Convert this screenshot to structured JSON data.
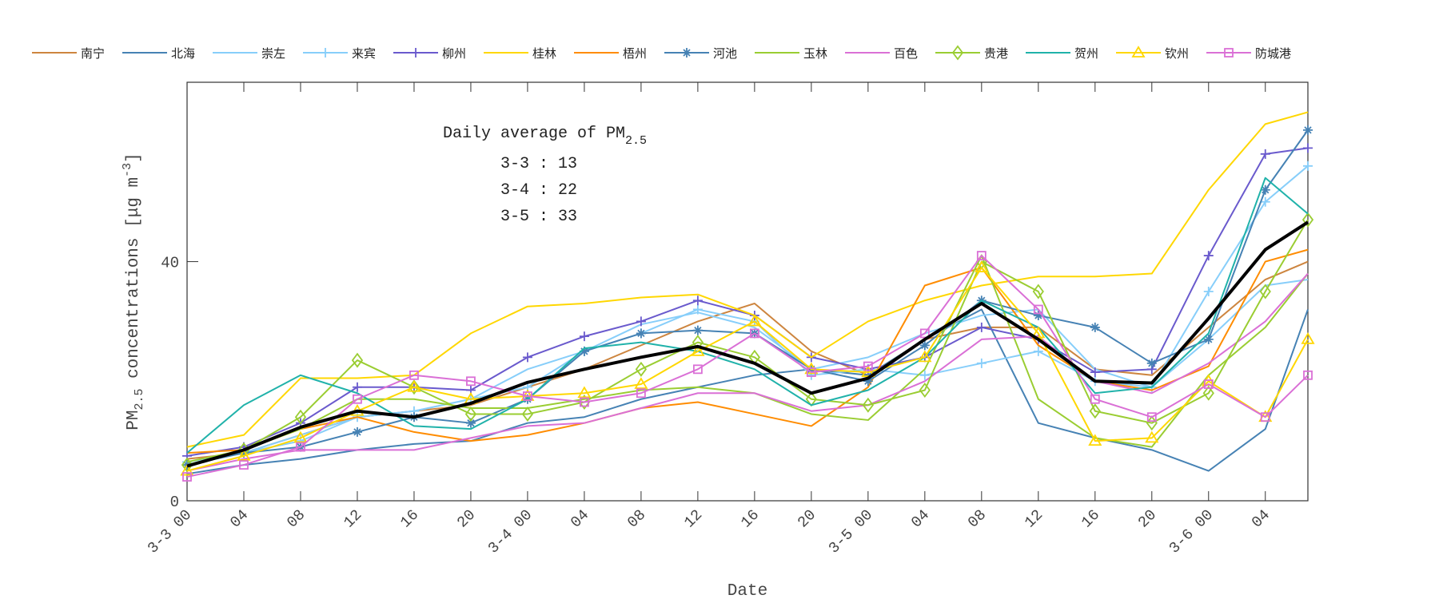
{
  "chart_data": {
    "type": "line",
    "xlabel": "Date",
    "ylabel_main": "PM",
    "ylabel_sub": "2.5",
    "ylabel_rest": " concentrations [",
    "ylabel_unit": "μg m",
    "ylabel_exp": "-3",
    "ylabel_end": "]",
    "ylim": [
      0,
      70
    ],
    "yticks": [
      0,
      40
    ],
    "x_hours_range": [
      0,
      79
    ],
    "x": [
      0,
      4,
      8,
      12,
      16,
      20,
      24,
      28,
      32,
      36,
      40,
      44,
      48,
      52,
      56,
      60,
      64,
      68,
      72,
      76,
      79
    ],
    "xtick_labels": [
      "3-3 00",
      "04",
      "08",
      "12",
      "16",
      "20",
      "3-4 00",
      "04",
      "08",
      "12",
      "16",
      "20",
      "3-5 00",
      "04",
      "08",
      "12",
      "16",
      "20",
      "3-6 00",
      "04"
    ],
    "legend_position": "top",
    "annotation": {
      "title": "Daily average of PM",
      "title_sub": "2.5",
      "lines": [
        "3-3 : 13",
        "3-4 : 22",
        "3-5 : 33"
      ]
    },
    "series": [
      {
        "name": "南宁",
        "color": "#cd853f",
        "marker": "none",
        "values": [
          7,
          8,
          11,
          14,
          15,
          16,
          19,
          22,
          26,
          30,
          33,
          25,
          21,
          27,
          29,
          29,
          22,
          21,
          29,
          37,
          40
        ]
      },
      {
        "name": "北海",
        "color": "#4682b4",
        "marker": "none",
        "values": [
          4.5,
          6,
          7,
          8.5,
          9.5,
          10,
          13,
          14,
          17,
          19,
          21,
          22,
          21,
          27,
          32,
          13,
          10.5,
          8.5,
          5,
          12,
          32
        ]
      },
      {
        "name": "崇左",
        "color": "#87cefa",
        "marker": "none",
        "values": [
          6,
          8,
          11,
          14,
          15,
          17,
          22,
          25,
          29.5,
          31.5,
          29,
          22,
          24,
          28,
          31,
          32,
          22,
          19,
          27,
          36,
          37
        ]
      },
      {
        "name": "来宾",
        "color": "#87cefa",
        "marker": "plus",
        "values": [
          6.5,
          8,
          10,
          14,
          15,
          17,
          19,
          25,
          28,
          32,
          30,
          21,
          22,
          21,
          23,
          25,
          20,
          19,
          35,
          50,
          56
        ]
      },
      {
        "name": "柳州",
        "color": "#6a5acd",
        "marker": "plus",
        "values": [
          7.5,
          9,
          13,
          19,
          19,
          18.5,
          24,
          27.5,
          30,
          33.5,
          31,
          24,
          22,
          24,
          29,
          27,
          21.5,
          22,
          41,
          58,
          59
        ]
      },
      {
        "name": "桂林",
        "color": "#ffd700",
        "marker": "none",
        "values": [
          9,
          11,
          20.5,
          20.5,
          21,
          28,
          32.5,
          33,
          34,
          34.5,
          31,
          24,
          30,
          33.5,
          36,
          37.5,
          37.5,
          38,
          52,
          63,
          65
        ]
      },
      {
        "name": "梧州",
        "color": "#ff8c00",
        "marker": "none",
        "values": [
          8,
          8.5,
          12,
          14,
          11.5,
          10,
          11,
          13,
          15.5,
          16.5,
          14.5,
          12.5,
          19,
          36,
          39,
          26,
          20,
          18.5,
          22.5,
          40,
          42
        ]
      },
      {
        "name": "河池",
        "color": "#4682b4",
        "marker": "star",
        "values": [
          6,
          8,
          9,
          11.5,
          14,
          13,
          17,
          25,
          28,
          28.5,
          28,
          22,
          20,
          26,
          33.5,
          31,
          29,
          23,
          27,
          52,
          62
        ]
      },
      {
        "name": "玉林",
        "color": "#9acd32",
        "marker": "none",
        "values": [
          6.5,
          8.5,
          12,
          17,
          17,
          15.5,
          15.5,
          17,
          18.5,
          19,
          18,
          14.5,
          13.5,
          22,
          41,
          17,
          10.5,
          9,
          21,
          29,
          38
        ]
      },
      {
        "name": "百色",
        "color": "#da70d6",
        "marker": "none",
        "values": [
          5,
          7,
          8.5,
          8.5,
          8.5,
          10.5,
          12.5,
          13,
          15.5,
          18,
          18,
          15,
          16,
          20,
          27,
          27.5,
          20,
          18,
          23,
          30,
          38
        ]
      },
      {
        "name": "贵港",
        "color": "#9acd32",
        "marker": "diamond",
        "values": [
          6,
          8.5,
          14,
          23.5,
          19,
          14.5,
          14.5,
          16.5,
          22,
          26.5,
          24,
          17,
          16,
          18.5,
          40,
          35,
          15,
          13,
          18,
          35,
          47
        ]
      },
      {
        "name": "贺州",
        "color": "#20b2aa",
        "marker": "none",
        "values": [
          8,
          16,
          21,
          18,
          12.5,
          12,
          17,
          25.5,
          26.5,
          25,
          22,
          16,
          18.5,
          24,
          33.5,
          29,
          18,
          19,
          28,
          54,
          48
        ]
      },
      {
        "name": "钦州",
        "color": "#ffd700",
        "marker": "triangle",
        "values": [
          5,
          7.5,
          10.5,
          15,
          19,
          17,
          17.5,
          18,
          19.5,
          25,
          30,
          22,
          21.5,
          24,
          39,
          28,
          10,
          10.5,
          20,
          14,
          27
        ]
      },
      {
        "name": "防城港",
        "color": "#da70d6",
        "marker": "square",
        "values": [
          4,
          6,
          9,
          17,
          21,
          20,
          17.5,
          16.5,
          18,
          22,
          28,
          21.5,
          22.5,
          28,
          41,
          32,
          17,
          14,
          19.5,
          14,
          21
        ]
      }
    ],
    "mean": {
      "color": "#000000",
      "values": [
        5.8,
        8.5,
        12.3,
        15,
        14,
        16.3,
        19.8,
        22,
        24,
        25.8,
        23,
        18,
        20.5,
        27,
        33,
        27,
        20,
        19.7,
        30.5,
        42,
        46.6
      ]
    }
  }
}
